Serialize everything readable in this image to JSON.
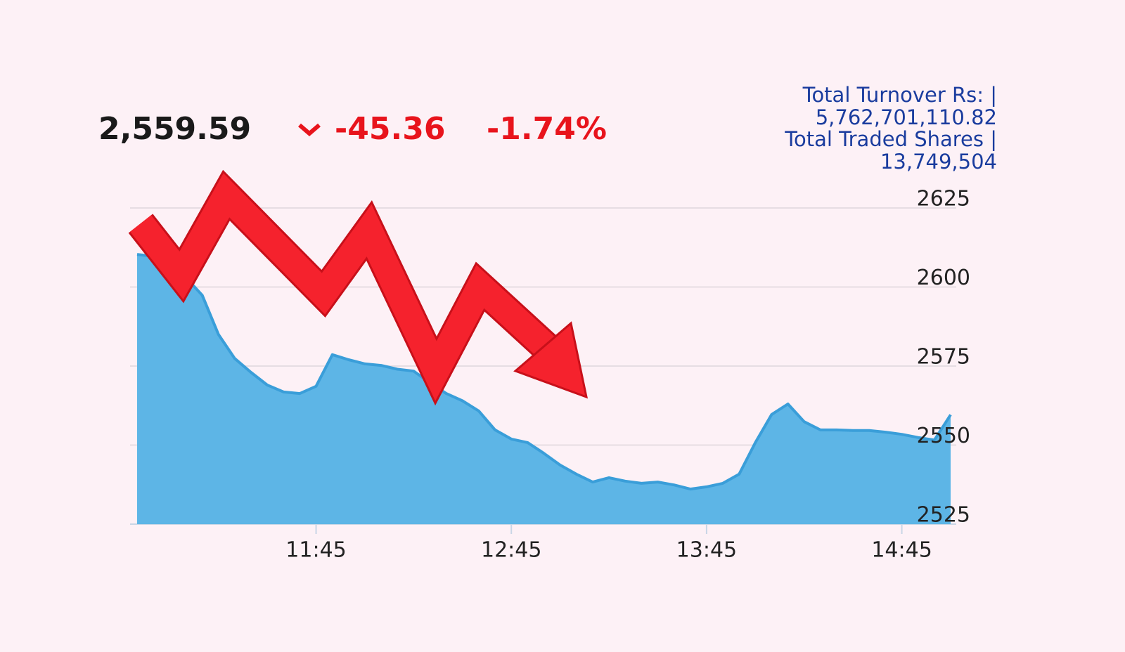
{
  "header": {
    "price": "2,559.59",
    "change": "-45.36",
    "percent": "-1.74%",
    "turnover_label": "Total Turnover Rs: |",
    "turnover_value": "5,762,701,110.82",
    "shares_label": "Total Traded Shares |",
    "shares_value": "13,749,504"
  },
  "chart_data": {
    "type": "area",
    "color": "#5db5e6",
    "line_color": "#3a9ed9",
    "x": [
      "10:50",
      "10:55",
      "11:00",
      "11:05",
      "11:10",
      "11:15",
      "11:20",
      "11:25",
      "11:30",
      "11:35",
      "11:40",
      "11:45",
      "11:50",
      "11:55",
      "12:00",
      "12:05",
      "12:10",
      "12:15",
      "12:20",
      "12:25",
      "12:30",
      "12:35",
      "12:40",
      "12:45",
      "12:50",
      "12:55",
      "13:00",
      "13:05",
      "13:10",
      "13:15",
      "13:20",
      "13:25",
      "13:30",
      "13:35",
      "13:40",
      "13:45",
      "13:50",
      "13:55",
      "14:00",
      "14:05",
      "14:10",
      "14:15",
      "14:20",
      "14:25",
      "14:30",
      "14:35",
      "14:40",
      "14:45",
      "14:50",
      "14:55",
      "15:00"
    ],
    "values": [
      2610.3,
      2609.7,
      2605,
      2603,
      2597.4,
      2585,
      2577.4,
      2573,
      2569,
      2566.8,
      2566.3,
      2568.6,
      2578.6,
      2577,
      2575.7,
      2575.2,
      2574,
      2573.4,
      2569.7,
      2566.3,
      2564,
      2560.8,
      2554.8,
      2551.9,
      2550.8,
      2547.4,
      2543.7,
      2540.8,
      2538.3,
      2539.7,
      2538.6,
      2537.9,
      2538.3,
      2537.4,
      2536.1,
      2536.8,
      2537.9,
      2540.8,
      2550.8,
      2559.7,
      2563,
      2557.4,
      2554.8,
      2554.8,
      2554.6,
      2554.6,
      2554.1,
      2553.4,
      2552.4,
      2551.6,
      2559.6
    ],
    "xticks": [
      "11:45",
      "12:45",
      "13:45",
      "14:45"
    ],
    "ylim": [
      2525,
      2625
    ],
    "yticks": [
      2525,
      2550,
      2575,
      2600,
      2625
    ],
    "grid": true
  }
}
